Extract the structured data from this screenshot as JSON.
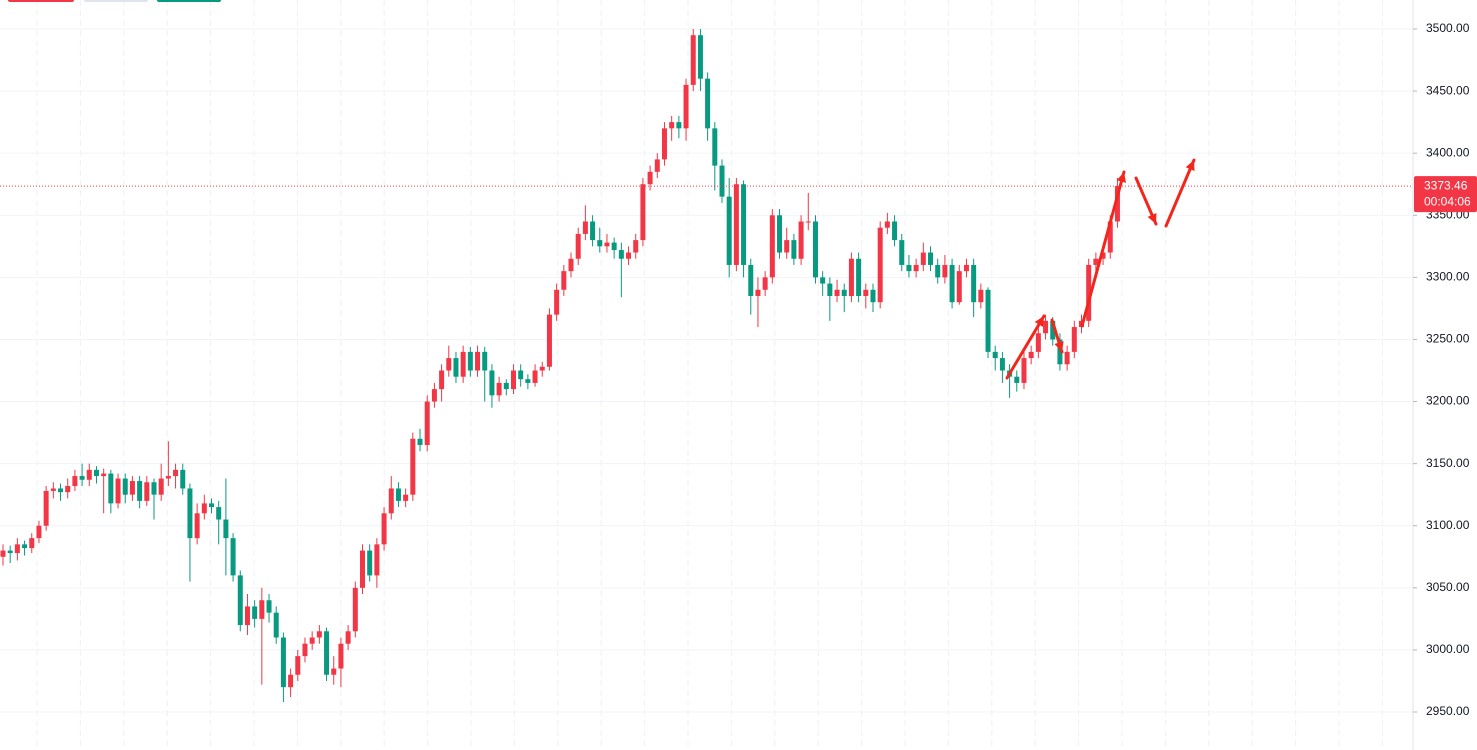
{
  "chart_data": {
    "type": "candlestick",
    "up_color": "#f23645",
    "down_color": "#089981",
    "ylim": [
      2950,
      3500
    ],
    "yticks": [
      {
        "value": 2950,
        "label": "2950.00"
      },
      {
        "value": 3000,
        "label": "3000.00"
      },
      {
        "value": 3050,
        "label": "3050.00"
      },
      {
        "value": 3100,
        "label": "3100.00"
      },
      {
        "value": 3150,
        "label": "3150.00"
      },
      {
        "value": 3200,
        "label": "3200.00"
      },
      {
        "value": 3250,
        "label": "3250.00"
      },
      {
        "value": 3300,
        "label": "3300.00"
      },
      {
        "value": 3350,
        "label": "3350.00"
      },
      {
        "value": 3400,
        "label": "3400.00"
      },
      {
        "value": 3450,
        "label": "3450.00"
      },
      {
        "value": 3500,
        "label": "3500.00"
      }
    ],
    "grid": true,
    "last_price": 3373.46,
    "countdown": "00:04:06",
    "candles": [
      [
        3075,
        3085,
        3068,
        3080
      ],
      [
        3080,
        3084,
        3070,
        3078
      ],
      [
        3078,
        3090,
        3072,
        3085
      ],
      [
        3085,
        3088,
        3076,
        3082
      ],
      [
        3082,
        3094,
        3078,
        3090
      ],
      [
        3090,
        3104,
        3086,
        3100
      ],
      [
        3100,
        3132,
        3096,
        3128
      ],
      [
        3128,
        3135,
        3122,
        3130
      ],
      [
        3130,
        3134,
        3120,
        3127
      ],
      [
        3127,
        3138,
        3122,
        3132
      ],
      [
        3132,
        3145,
        3128,
        3140
      ],
      [
        3140,
        3150,
        3132,
        3137
      ],
      [
        3137,
        3150,
        3132,
        3145
      ],
      [
        3145,
        3148,
        3134,
        3140
      ],
      [
        3140,
        3146,
        3110,
        3142
      ],
      [
        3142,
        3145,
        3110,
        3118
      ],
      [
        3118,
        3142,
        3114,
        3138
      ],
      [
        3138,
        3142,
        3118,
        3125
      ],
      [
        3125,
        3140,
        3120,
        3136
      ],
      [
        3136,
        3140,
        3114,
        3120
      ],
      [
        3120,
        3140,
        3116,
        3135
      ],
      [
        3135,
        3138,
        3105,
        3125
      ],
      [
        3125,
        3150,
        3120,
        3138
      ],
      [
        3138,
        3168,
        3132,
        3140
      ],
      [
        3140,
        3150,
        3130,
        3145
      ],
      [
        3145,
        3150,
        3125,
        3130
      ],
      [
        3130,
        3134,
        3055,
        3090
      ],
      [
        3090,
        3118,
        3085,
        3110
      ],
      [
        3110,
        3125,
        3105,
        3118
      ],
      [
        3118,
        3122,
        3110,
        3115
      ],
      [
        3115,
        3120,
        3085,
        3105
      ],
      [
        3105,
        3138,
        3060,
        3090
      ],
      [
        3090,
        3094,
        3055,
        3060
      ],
      [
        3060,
        3064,
        3015,
        3020
      ],
      [
        3020,
        3045,
        3012,
        3035
      ],
      [
        3035,
        3040,
        3018,
        3025
      ],
      [
        3025,
        3050,
        2972,
        3040
      ],
      [
        3040,
        3045,
        3022,
        3030
      ],
      [
        3030,
        3035,
        3005,
        3010
      ],
      [
        3010,
        3014,
        2958,
        2970
      ],
      [
        2970,
        2985,
        2962,
        2980
      ],
      [
        2980,
        3000,
        2975,
        2995
      ],
      [
        2995,
        3010,
        2990,
        3005
      ],
      [
        3005,
        3015,
        3000,
        3010
      ],
      [
        3010,
        3020,
        3005,
        3015
      ],
      [
        3015,
        3018,
        2975,
        2980
      ],
      [
        2980,
        2995,
        2972,
        2985
      ],
      [
        2985,
        3010,
        2970,
        3005
      ],
      [
        3005,
        3020,
        3000,
        3015
      ],
      [
        3015,
        3055,
        3010,
        3050
      ],
      [
        3050,
        3085,
        3045,
        3080
      ],
      [
        3080,
        3085,
        3055,
        3060
      ],
      [
        3060,
        3090,
        3050,
        3085
      ],
      [
        3085,
        3115,
        3080,
        3110
      ],
      [
        3110,
        3140,
        3105,
        3130
      ],
      [
        3130,
        3135,
        3115,
        3120
      ],
      [
        3120,
        3130,
        3115,
        3125
      ],
      [
        3125,
        3175,
        3120,
        3170
      ],
      [
        3170,
        3178,
        3160,
        3165
      ],
      [
        3165,
        3205,
        3160,
        3200
      ],
      [
        3200,
        3215,
        3195,
        3210
      ],
      [
        3210,
        3230,
        3200,
        3225
      ],
      [
        3225,
        3245,
        3220,
        3235
      ],
      [
        3235,
        3240,
        3215,
        3220
      ],
      [
        3220,
        3245,
        3215,
        3240
      ],
      [
        3240,
        3244,
        3220,
        3225
      ],
      [
        3225,
        3245,
        3220,
        3240
      ],
      [
        3240,
        3244,
        3200,
        3225
      ],
      [
        3225,
        3230,
        3195,
        3205
      ],
      [
        3205,
        3220,
        3200,
        3215
      ],
      [
        3215,
        3218,
        3205,
        3210
      ],
      [
        3210,
        3230,
        3206,
        3225
      ],
      [
        3225,
        3230,
        3212,
        3218
      ],
      [
        3218,
        3222,
        3210,
        3215
      ],
      [
        3215,
        3230,
        3212,
        3225
      ],
      [
        3225,
        3232,
        3220,
        3228
      ],
      [
        3228,
        3275,
        3225,
        3270
      ],
      [
        3270,
        3295,
        3265,
        3290
      ],
      [
        3290,
        3310,
        3285,
        3305
      ],
      [
        3305,
        3320,
        3300,
        3315
      ],
      [
        3315,
        3340,
        3310,
        3335
      ],
      [
        3335,
        3358,
        3330,
        3345
      ],
      [
        3345,
        3350,
        3325,
        3330
      ],
      [
        3330,
        3340,
        3320,
        3325
      ],
      [
        3325,
        3335,
        3320,
        3328
      ],
      [
        3328,
        3332,
        3315,
        3322
      ],
      [
        3322,
        3328,
        3284,
        3315
      ],
      [
        3315,
        3325,
        3310,
        3320
      ],
      [
        3320,
        3335,
        3315,
        3330
      ],
      [
        3330,
        3380,
        3325,
        3375
      ],
      [
        3375,
        3390,
        3370,
        3385
      ],
      [
        3385,
        3400,
        3380,
        3395
      ],
      [
        3395,
        3425,
        3390,
        3420
      ],
      [
        3420,
        3430,
        3410,
        3425
      ],
      [
        3425,
        3430,
        3412,
        3420
      ],
      [
        3420,
        3460,
        3410,
        3455
      ],
      [
        3455,
        3500,
        3450,
        3495
      ],
      [
        3495,
        3500,
        3450,
        3460
      ],
      [
        3460,
        3465,
        3410,
        3420
      ],
      [
        3420,
        3425,
        3370,
        3390
      ],
      [
        3390,
        3395,
        3360,
        3365
      ],
      [
        3365,
        3380,
        3300,
        3310
      ],
      [
        3310,
        3380,
        3305,
        3375
      ],
      [
        3375,
        3378,
        3300,
        3310
      ],
      [
        3310,
        3315,
        3270,
        3285
      ],
      [
        3285,
        3300,
        3260,
        3290
      ],
      [
        3290,
        3305,
        3285,
        3300
      ],
      [
        3300,
        3355,
        3295,
        3350
      ],
      [
        3350,
        3355,
        3315,
        3320
      ],
      [
        3320,
        3340,
        3315,
        3330
      ],
      [
        3330,
        3335,
        3310,
        3315
      ],
      [
        3315,
        3350,
        3310,
        3345
      ],
      [
        3345,
        3368,
        3338,
        3345
      ],
      [
        3345,
        3350,
        3295,
        3300
      ],
      [
        3300,
        3305,
        3285,
        3295
      ],
      [
        3295,
        3300,
        3265,
        3285
      ],
      [
        3285,
        3298,
        3280,
        3290
      ],
      [
        3290,
        3295,
        3272,
        3285
      ],
      [
        3285,
        3320,
        3280,
        3315
      ],
      [
        3315,
        3320,
        3280,
        3285
      ],
      [
        3285,
        3295,
        3275,
        3290
      ],
      [
        3290,
        3295,
        3272,
        3280
      ],
      [
        3280,
        3345,
        3275,
        3340
      ],
      [
        3340,
        3352,
        3335,
        3345
      ],
      [
        3345,
        3350,
        3325,
        3330
      ],
      [
        3330,
        3335,
        3305,
        3310
      ],
      [
        3310,
        3318,
        3300,
        3305
      ],
      [
        3305,
        3315,
        3300,
        3310
      ],
      [
        3310,
        3328,
        3305,
        3320
      ],
      [
        3320,
        3325,
        3305,
        3310
      ],
      [
        3310,
        3315,
        3295,
        3300
      ],
      [
        3300,
        3318,
        3295,
        3310
      ],
      [
        3310,
        3315,
        3275,
        3280
      ],
      [
        3280,
        3310,
        3278,
        3305
      ],
      [
        3305,
        3315,
        3300,
        3310
      ],
      [
        3310,
        3315,
        3268,
        3280
      ],
      [
        3280,
        3295,
        3275,
        3290
      ],
      [
        3290,
        3292,
        3235,
        3240
      ],
      [
        3240,
        3245,
        3225,
        3235
      ],
      [
        3235,
        3240,
        3215,
        3225
      ],
      [
        3225,
        3230,
        3203,
        3220
      ],
      [
        3220,
        3225,
        3208,
        3215
      ],
      [
        3215,
        3240,
        3210,
        3235
      ],
      [
        3235,
        3245,
        3230,
        3240
      ],
      [
        3240,
        3260,
        3235,
        3255
      ],
      [
        3255,
        3270,
        3250,
        3265
      ],
      [
        3265,
        3268,
        3245,
        3250
      ],
      [
        3250,
        3255,
        3225,
        3230
      ],
      [
        3230,
        3245,
        3225,
        3240
      ],
      [
        3240,
        3265,
        3235,
        3260
      ],
      [
        3260,
        3270,
        3255,
        3265
      ],
      [
        3265,
        3315,
        3260,
        3310
      ],
      [
        3310,
        3320,
        3305,
        3315
      ],
      [
        3315,
        3325,
        3310,
        3320
      ],
      [
        3320,
        3350,
        3315,
        3345
      ],
      [
        3345,
        3380,
        3340,
        3373.46
      ]
    ]
  }
}
